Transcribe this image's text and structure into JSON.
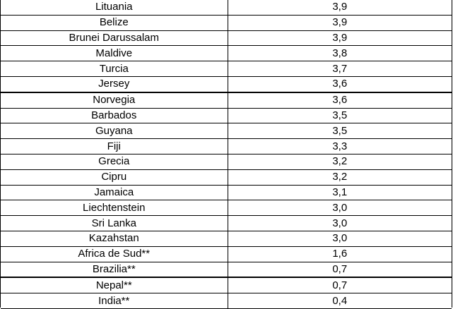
{
  "rows": [
    {
      "country": "Lituania",
      "value": "3,9"
    },
    {
      "country": "Belize",
      "value": "3,9"
    },
    {
      "country": "Brunei Darussalam",
      "value": "3,9"
    },
    {
      "country": "Maldive",
      "value": "3,8"
    },
    {
      "country": "Turcia",
      "value": "3,7"
    },
    {
      "country": "Jersey",
      "value": "3,6"
    },
    {
      "country": "Norvegia",
      "value": "3,6"
    },
    {
      "country": "Barbados",
      "value": "3,5"
    },
    {
      "country": "Guyana",
      "value": "3,5"
    },
    {
      "country": "Fiji",
      "value": "3,3"
    },
    {
      "country": "Grecia",
      "value": "3,2"
    },
    {
      "country": "Cipru",
      "value": "3,2"
    },
    {
      "country": "Jamaica",
      "value": "3,1"
    },
    {
      "country": "Liechtenstein",
      "value": "3,0"
    },
    {
      "country": "Sri Lanka",
      "value": "3,0"
    },
    {
      "country": "Kazahstan",
      "value": "3,0"
    },
    {
      "country": "Africa de Sud**",
      "value": "1,6"
    },
    {
      "country": "Brazilia**",
      "value": "0,7"
    },
    {
      "country": "Nepal**",
      "value": "0,7"
    },
    {
      "country": "India**",
      "value": "0,4"
    }
  ]
}
